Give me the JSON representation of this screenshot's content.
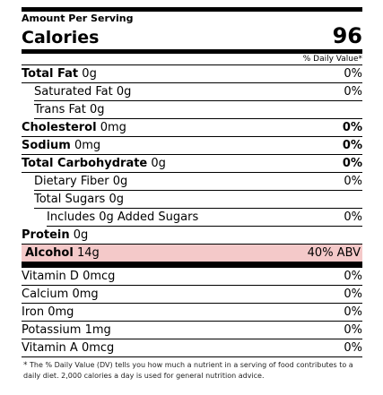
{
  "header": {
    "amount_per_serving": "Amount Per Serving",
    "calories_label": "Calories",
    "calories_value": "96",
    "daily_value_header": "% Daily Value*"
  },
  "nutrients": {
    "total_fat": {
      "name": "Total Fat",
      "amount": "0g",
      "pct": "0%"
    },
    "saturated_fat": {
      "name": "Saturated Fat",
      "amount": "0g",
      "pct": "0%"
    },
    "trans_fat": {
      "name": "Trans Fat",
      "amount": "0g",
      "pct": ""
    },
    "cholesterol": {
      "name": "Cholesterol",
      "amount": "0mg",
      "pct": "0%"
    },
    "sodium": {
      "name": "Sodium",
      "amount": "0mg",
      "pct": "0%"
    },
    "total_carbohydrate": {
      "name": "Total Carbohydrate",
      "amount": "0g",
      "pct": "0%"
    },
    "dietary_fiber": {
      "name": "Dietary Fiber",
      "amount": "0g",
      "pct": "0%"
    },
    "total_sugars": {
      "name": "Total Sugars",
      "amount": "0g",
      "pct": ""
    },
    "added_sugars": {
      "name": "Includes 0g Added Sugars",
      "amount": "",
      "pct": "0%"
    },
    "protein": {
      "name": "Protein",
      "amount": "0g",
      "pct": ""
    },
    "alcohol": {
      "name": "Alcohol",
      "amount": "14g",
      "pct": "40% ABV",
      "highlight_color": "#f4c9c9"
    }
  },
  "vitamins": {
    "vitamin_d": {
      "name": "Vitamin D",
      "amount": "0mcg",
      "pct": "0%"
    },
    "calcium": {
      "name": "Calcium",
      "amount": "0mg",
      "pct": "0%"
    },
    "iron": {
      "name": "Iron",
      "amount": "0mg",
      "pct": "0%"
    },
    "potassium": {
      "name": "Potassium",
      "amount": "1mg",
      "pct": "0%"
    },
    "vitamin_a": {
      "name": "Vitamin A",
      "amount": "0mcg",
      "pct": "0%"
    }
  },
  "footnote": {
    "star": "*",
    "text": "The % Daily Value (DV) tells you how much a nutrient in a serving of food contributes to a daily diet. 2,000 calories a day is used for general nutrition advice."
  }
}
